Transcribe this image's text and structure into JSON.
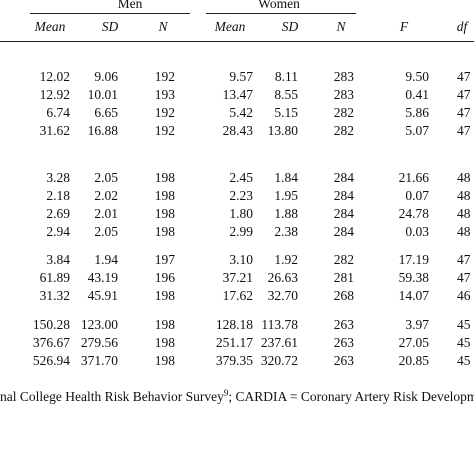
{
  "table": {
    "groups": [
      "Men",
      "Women"
    ],
    "columns": [
      "Mean",
      "SD",
      "N",
      "Mean",
      "SD",
      "N",
      "F",
      "df"
    ],
    "rows": [
      [
        "12.02",
        "9.06",
        "192",
        "9.57",
        "8.11",
        "283",
        "9.50",
        "47"
      ],
      [
        "12.92",
        "10.01",
        "193",
        "13.47",
        "8.55",
        "283",
        "0.41",
        "47"
      ],
      [
        "6.74",
        "6.65",
        "192",
        "5.42",
        "5.15",
        "282",
        "5.86",
        "47"
      ],
      [
        "31.62",
        "16.88",
        "192",
        "28.43",
        "13.80",
        "282",
        "5.07",
        "47"
      ],
      [
        "3.28",
        "2.05",
        "198",
        "2.45",
        "1.84",
        "284",
        "21.66",
        "48"
      ],
      [
        "2.18",
        "2.02",
        "198",
        "2.23",
        "1.95",
        "284",
        "0.07",
        "48"
      ],
      [
        "2.69",
        "2.01",
        "198",
        "1.80",
        "1.88",
        "284",
        "24.78",
        "48"
      ],
      [
        "2.94",
        "2.05",
        "198",
        "2.99",
        "2.38",
        "284",
        "0.03",
        "48"
      ],
      [
        "3.84",
        "1.94",
        "197",
        "3.10",
        "1.92",
        "282",
        "17.19",
        "47"
      ],
      [
        "61.89",
        "43.19",
        "196",
        "37.21",
        "26.63",
        "281",
        "59.38",
        "47"
      ],
      [
        "31.32",
        "45.91",
        "198",
        "17.62",
        "32.70",
        "268",
        "14.07",
        "46"
      ],
      [
        "150.28",
        "123.00",
        "198",
        "128.18",
        "113.78",
        "263",
        "3.97",
        "45"
      ],
      [
        "376.67",
        "279.56",
        "198",
        "251.17",
        "237.61",
        "263",
        "27.05",
        "45"
      ],
      [
        "526.94",
        "371.70",
        "198",
        "379.35",
        "320.72",
        "263",
        "20.85",
        "45"
      ]
    ]
  },
  "footnote": {
    "before": "nal College Health Risk Behavior Survey",
    "sup": "9",
    "after": "; CARDIA = Coronary Artery Risk Development"
  }
}
